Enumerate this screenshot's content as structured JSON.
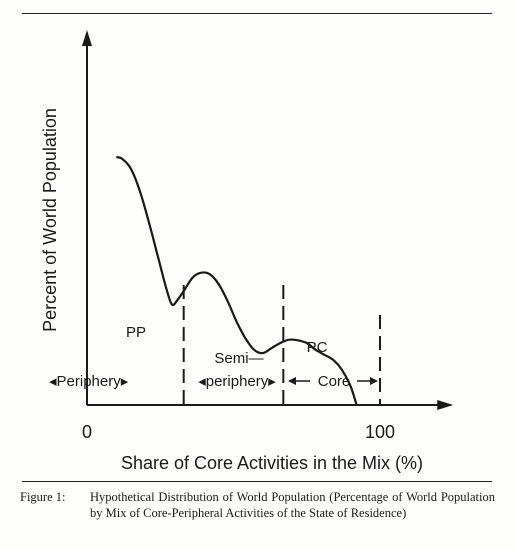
{
  "chart_data": {
    "type": "line",
    "title": "",
    "xlabel": "Share of Core Activities in the Mix (%)",
    "ylabel": "Percent of World Population",
    "xlim": [
      0,
      125
    ],
    "ylim": [
      0,
      100
    ],
    "x_ticks": [
      "0",
      "100"
    ],
    "grid": false,
    "series": [
      {
        "x": [
          10,
          12,
          15,
          18,
          21,
          24,
          27,
          29,
          31,
          33,
          36,
          39,
          42,
          45,
          48,
          51,
          54,
          57,
          60,
          63,
          66,
          69,
          72,
          75,
          78,
          81,
          84,
          87,
          90,
          92
        ],
        "y": [
          74,
          73.5,
          70.5,
          64,
          55,
          45,
          35,
          30,
          31.5,
          34,
          38,
          39.5,
          39,
          36,
          31,
          25,
          20,
          16.5,
          15.5,
          17,
          18.5,
          19.5,
          19.3,
          18.5,
          16.5,
          15,
          13.5,
          10.5,
          5.5,
          0
        ]
      }
    ],
    "zones": [
      {
        "label": "PP",
        "name": "Periphery",
        "from": 0,
        "to": 33
      },
      {
        "label": "",
        "name": "Semi—periphery",
        "from": 33,
        "to": 67
      },
      {
        "label": "PC",
        "name": "Core",
        "from": 67,
        "to": 100
      }
    ],
    "boundaries": [
      33,
      67,
      100
    ]
  },
  "caption": {
    "label": "Figure 1:",
    "text": "Hypothetical Distribution of World Population (Percentage of World Population by Mix of Core-Peripheral Activities of the State of Residence)"
  }
}
